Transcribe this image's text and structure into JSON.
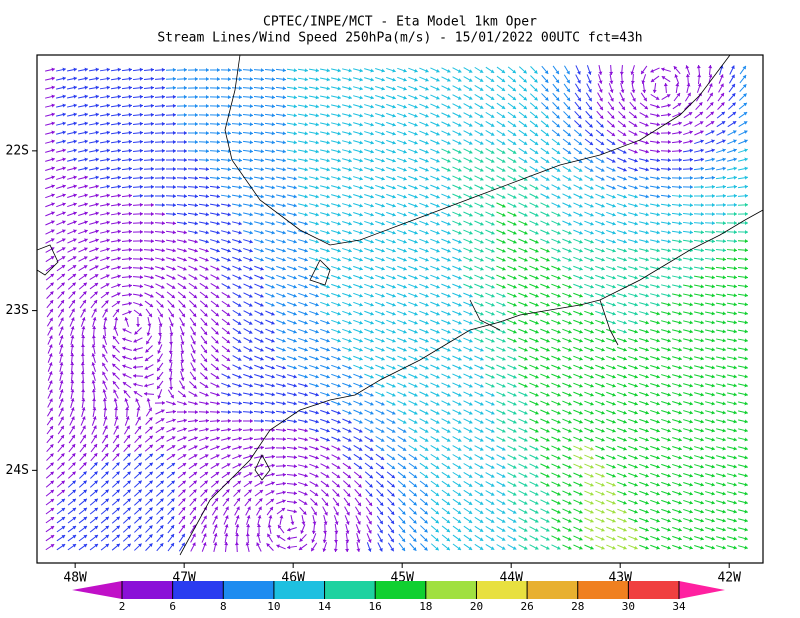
{
  "map": {
    "title": "CPTEC/INPE/MCT -  Eta Model 1km Oper",
    "subtitle": "Stream Lines/Wind Speed 250hPa(m/s) - 15/01/2022 00UTC fct=43h",
    "xlim": [
      -48.35,
      -41.69
    ],
    "ylim": [
      -24.58,
      -21.4
    ],
    "xticks": [
      {
        "value": -48,
        "label": "48W"
      },
      {
        "value": -47,
        "label": "47W"
      },
      {
        "value": -46,
        "label": "46W"
      },
      {
        "value": -45,
        "label": "45W"
      },
      {
        "value": -44,
        "label": "44W"
      },
      {
        "value": -43,
        "label": "43W"
      },
      {
        "value": -42,
        "label": "42W"
      }
    ],
    "yticks": [
      {
        "value": -22,
        "label": "22S"
      },
      {
        "value": -23,
        "label": "23S"
      },
      {
        "value": -24,
        "label": "24S"
      }
    ],
    "colorbar": {
      "levels": [
        2,
        6,
        8,
        10,
        14,
        16,
        18,
        20,
        26,
        28,
        30,
        34
      ],
      "colors": [
        "#c010c8",
        "#8a10d8",
        "#2a3cf0",
        "#1e8cf0",
        "#1ec0e0",
        "#1ed2a0",
        "#10d030",
        "#a0e040",
        "#e8e040",
        "#e8b030",
        "#f08020",
        "#f04040",
        "#ff20a0"
      ]
    }
  }
}
